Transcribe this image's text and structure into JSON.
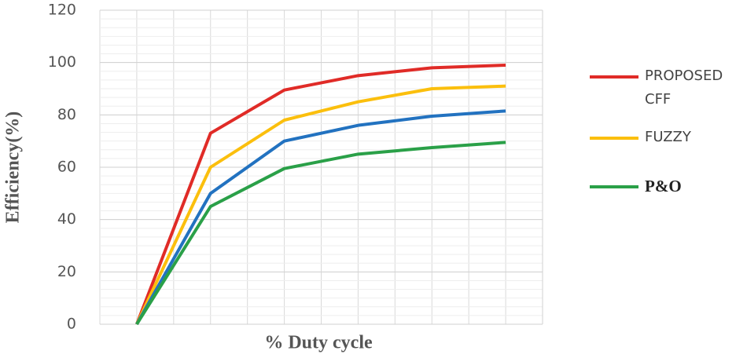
{
  "chart_data": {
    "type": "line",
    "x_label": "% Duty cycle",
    "y_label": "Efficiency(%)",
    "categories": [
      null,
      null,
      null,
      null,
      null,
      null
    ],
    "series": [
      {
        "name": "PROPOSED CFF",
        "color": "#e02b27",
        "values": [
          0,
          73,
          89.5,
          95,
          98,
          99
        ]
      },
      {
        "name": "FUZZY",
        "color": "#fbbf0d",
        "values": [
          0,
          60,
          78,
          85,
          90,
          91
        ]
      },
      {
        "color": "#2272c0",
        "values": [
          0,
          50,
          70,
          76,
          79.5,
          81.5
        ]
      },
      {
        "name": "P&O",
        "color": "#2aa048",
        "values": [
          0,
          45,
          59.5,
          65,
          67.5,
          69.5
        ]
      }
    ],
    "ylim": [
      0,
      120
    ],
    "yticks": [
      0,
      20,
      40,
      60,
      80,
      100,
      120
    ],
    "grid": true
  }
}
